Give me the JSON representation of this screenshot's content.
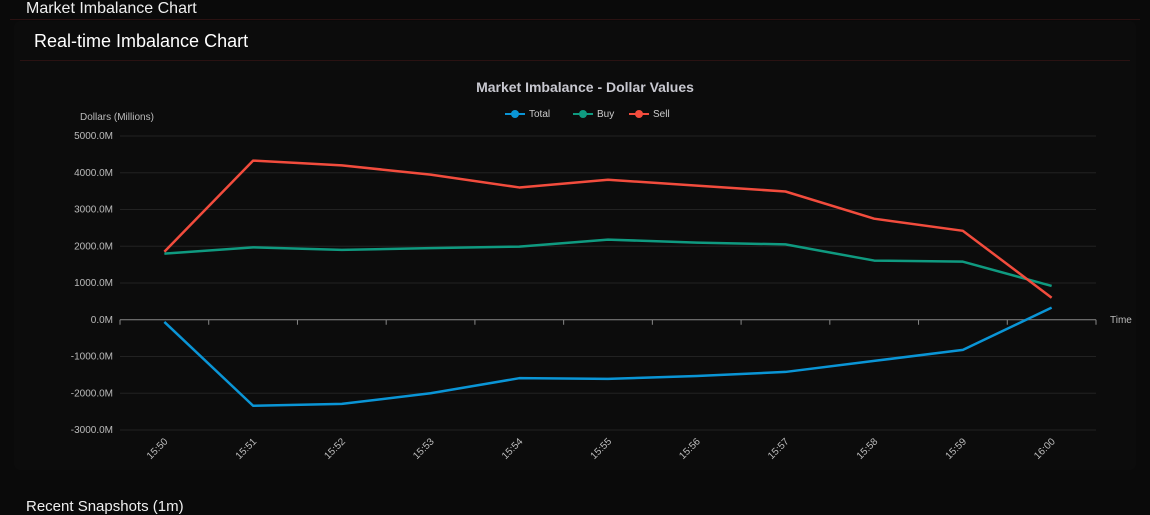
{
  "header": {
    "title": "Market Imbalance Chart"
  },
  "card": {
    "title": "Real-time Imbalance Chart"
  },
  "footer": {
    "title": "Recent Snapshots (1m)"
  },
  "chart_data": {
    "type": "line",
    "title": "Market Imbalance - Dollar Values",
    "ylabel": "Dollars (Millions)",
    "xlabel": "Time",
    "ylim": [
      -3000,
      5000
    ],
    "yticks": [
      "5000.0M",
      "4000.0M",
      "3000.0M",
      "2000.0M",
      "1000.0M",
      "0.0M",
      "-1000.0M",
      "-2000.0M",
      "-3000.0M"
    ],
    "ytick_values": [
      5000,
      4000,
      3000,
      2000,
      1000,
      0,
      -1000,
      -2000,
      -3000
    ],
    "categories": [
      "15:50",
      "15:51",
      "15:52",
      "15:53",
      "15:54",
      "15:55",
      "15:56",
      "15:57",
      "15:58",
      "15:59",
      "16:00"
    ],
    "grid": true,
    "legend": "top-center",
    "series": [
      {
        "name": "Total",
        "color": "#0a95d6",
        "values": [
          -60,
          -2340,
          -2290,
          -2000,
          -1590,
          -1610,
          -1530,
          -1420,
          -1120,
          -820,
          330
        ]
      },
      {
        "name": "Buy",
        "color": "#0f9a80",
        "values": [
          1800,
          1970,
          1900,
          1950,
          1990,
          2180,
          2100,
          2050,
          1610,
          1580,
          920
        ]
      },
      {
        "name": "Sell",
        "color": "#f24c3d",
        "values": [
          1850,
          4330,
          4200,
          3950,
          3600,
          3810,
          3650,
          3490,
          2750,
          2420,
          600
        ]
      }
    ]
  }
}
